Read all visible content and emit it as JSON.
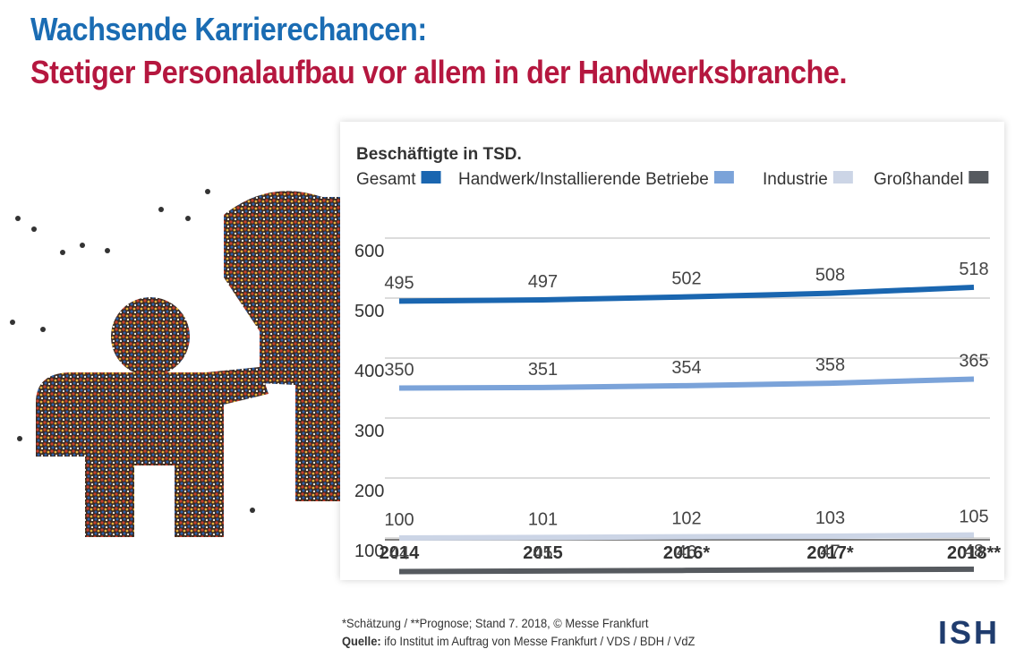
{
  "header": {
    "title_line1": "Wachsende Karrierechancen:",
    "title_line2": "Stetiger Personalaufbau vor allem in der Handwerksbranche.",
    "title_line1_color": "#1a6cb3",
    "title_line2_color": "#b5173f"
  },
  "footer": {
    "footnote": "*Schätzung / **Prognose; Stand 7. 2018, © Messe Frankfurt",
    "source_label": "Quelle:",
    "source_text": " ifo Institut im Auftrag von Messe Frankfurt / VDS / BDH / VdZ",
    "logo": "ISH"
  },
  "chart_data": {
    "type": "line",
    "title": "Beschäftigte in TSD.",
    "categories": [
      "2014",
      "2015",
      "2016*",
      "2017*",
      "2018**"
    ],
    "ylim": [
      100,
      600
    ],
    "yticks": [
      100,
      200,
      300,
      400,
      500,
      600
    ],
    "grid": true,
    "legend_position": "top",
    "series": [
      {
        "name": "Gesamt",
        "values": [
          495,
          497,
          502,
          508,
          518
        ],
        "color": "#1a66b0"
      },
      {
        "name": "Handwerk/Installierende Betriebe",
        "values": [
          350,
          351,
          354,
          358,
          365
        ],
        "color": "#7ba3d9"
      },
      {
        "name": "Industrie",
        "values": [
          100,
          101,
          102,
          103,
          105
        ],
        "color": "#ccd5e6"
      },
      {
        "name": "Großhandel",
        "values": [
          44,
          45,
          46,
          47,
          48
        ],
        "color": "#565a5f"
      }
    ]
  }
}
